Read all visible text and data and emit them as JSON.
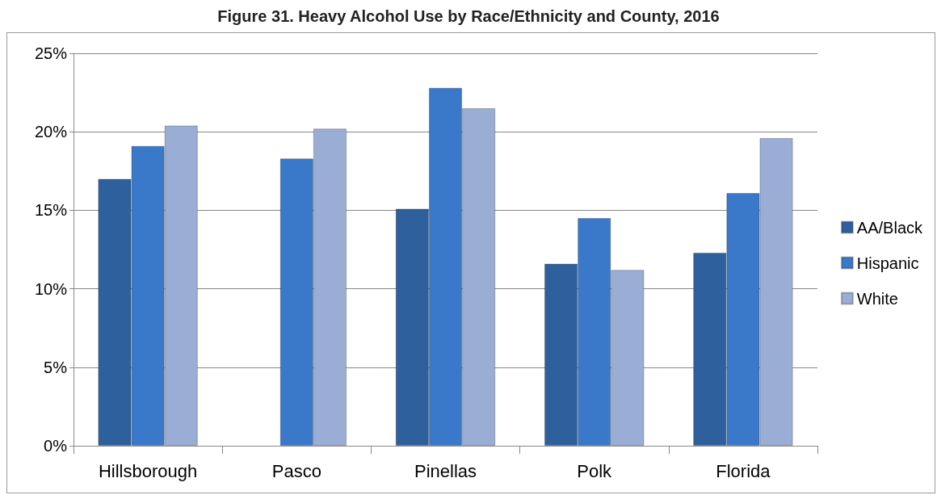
{
  "chart_data": {
    "type": "bar",
    "title": "Figure 31. Heavy Alcohol Use by Race/Ethnicity and County, 2016",
    "categories": [
      "Hillsborough",
      "Pasco",
      "Pinellas",
      "Polk",
      "Florida"
    ],
    "series": [
      {
        "name": "AA/Black",
        "color": "#2f609e",
        "values": [
          17.0,
          null,
          15.1,
          11.6,
          12.3
        ]
      },
      {
        "name": "Hispanic",
        "color": "#3a79c9",
        "values": [
          19.1,
          18.3,
          22.8,
          14.5,
          16.1
        ]
      },
      {
        "name": "White",
        "color": "#9aadd5",
        "values": [
          20.4,
          20.2,
          21.5,
          11.2,
          19.6
        ]
      }
    ],
    "ylim": [
      0,
      25
    ],
    "yticks": [
      {
        "value": 0,
        "label": "0%"
      },
      {
        "value": 5,
        "label": "5%"
      },
      {
        "value": 10,
        "label": "10%"
      },
      {
        "value": 15,
        "label": "15%"
      },
      {
        "value": 20,
        "label": "20%"
      },
      {
        "value": 25,
        "label": "25%"
      }
    ],
    "grid": "y",
    "legend": "right"
  }
}
